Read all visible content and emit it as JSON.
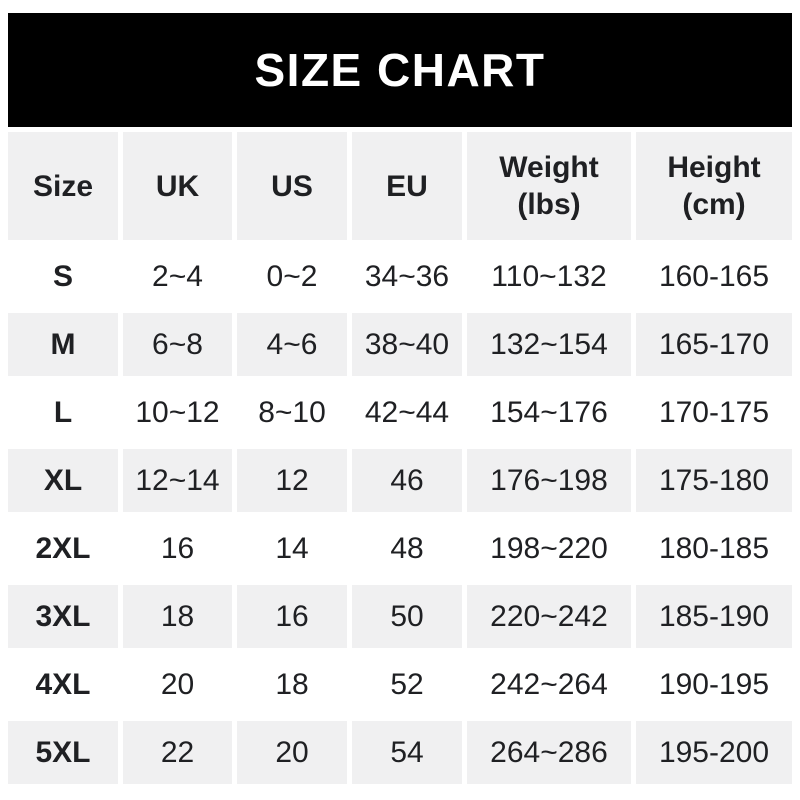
{
  "title": "SIZE CHART",
  "colors": {
    "banner_bg": "#000000",
    "banner_text": "#ffffff",
    "stripe": "#f0f0f1",
    "text": "#1f2023"
  },
  "chart_data": {
    "type": "table",
    "title": "SIZE CHART",
    "columns": [
      {
        "label": "Size",
        "sub": ""
      },
      {
        "label": "UK",
        "sub": ""
      },
      {
        "label": "US",
        "sub": ""
      },
      {
        "label": "EU",
        "sub": ""
      },
      {
        "label": "Weight",
        "sub": "(lbs)"
      },
      {
        "label": "Height",
        "sub": "(cm)"
      }
    ],
    "rows": [
      {
        "size": "S",
        "uk": "2~4",
        "us": "0~2",
        "eu": "34~36",
        "weight_lbs": "110~132",
        "height_cm": "160-165"
      },
      {
        "size": "M",
        "uk": "6~8",
        "us": "4~6",
        "eu": "38~40",
        "weight_lbs": "132~154",
        "height_cm": "165-170"
      },
      {
        "size": "L",
        "uk": "10~12",
        "us": "8~10",
        "eu": "42~44",
        "weight_lbs": "154~176",
        "height_cm": "170-175"
      },
      {
        "size": "XL",
        "uk": "12~14",
        "us": "12",
        "eu": "46",
        "weight_lbs": "176~198",
        "height_cm": "175-180"
      },
      {
        "size": "2XL",
        "uk": "16",
        "us": "14",
        "eu": "48",
        "weight_lbs": "198~220",
        "height_cm": "180-185"
      },
      {
        "size": "3XL",
        "uk": "18",
        "us": "16",
        "eu": "50",
        "weight_lbs": "220~242",
        "height_cm": "185-190"
      },
      {
        "size": "4XL",
        "uk": "20",
        "us": "18",
        "eu": "52",
        "weight_lbs": "242~264",
        "height_cm": "190-195"
      },
      {
        "size": "5XL",
        "uk": "22",
        "us": "20",
        "eu": "54",
        "weight_lbs": "264~286",
        "height_cm": "195-200"
      }
    ]
  }
}
